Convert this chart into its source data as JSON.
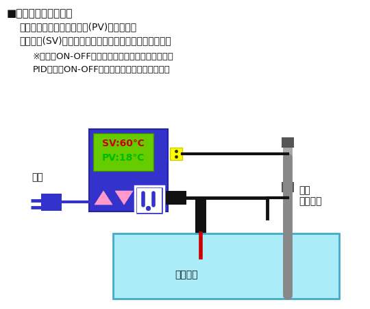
{
  "bg_color": "#ffffff",
  "text_title": "■温度調節器の仕組み",
  "text_body1": "温度センサーで現在の温度(PV)を感知し、",
  "text_body2": "設定温度(SV)に達するまでヒーターに電気を流します。",
  "text_note1": "※電気のON-OFFの度合いを温度制御方式と呼び、",
  "text_note2": "PID制御、ON-OFF制御などの方式があります。",
  "label_power": "電源",
  "label_sensor": "温度\nセンサー",
  "label_heater": "ヒーター",
  "sv_text": "SV:60℃",
  "pv_text": "PV:18℃",
  "controller_color": "#3333cc",
  "display_color": "#66cc00",
  "sv_text_color": "#cc0000",
  "pv_text_color": "#00bb00",
  "tank_color": "#aaecf8",
  "tank_edge_color": "#44aacc",
  "heater_color": "#cc0000",
  "sensor_color": "#888888",
  "wire_color": "#111111",
  "power_plug_color": "#3333cc",
  "yellow_color": "#ffff00",
  "pink_color": "#ff99cc",
  "black_connector_color": "#111111",
  "socket_bg": "#ffffff",
  "socket_line_color": "#3333cc"
}
